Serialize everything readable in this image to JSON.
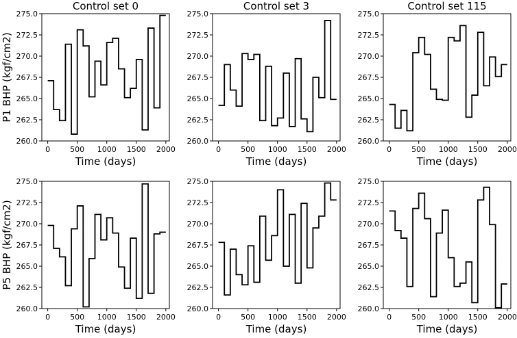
{
  "chart_data": {
    "type": "line",
    "style": "step",
    "layout": "2x3 grid",
    "row_labels": [
      "P1 BHP (kgf/cm2)",
      "P5 BHP (kgf/cm2)"
    ],
    "xlabel": "Time (days)",
    "xlim": [
      -100,
      2060
    ],
    "ylim": [
      260.0,
      275.0
    ],
    "x_ticks": [
      0,
      500,
      1000,
      1500,
      2000
    ],
    "y_tick_labels": [
      "260.0",
      "262.5",
      "265.0",
      "267.5",
      "270.0",
      "272.5",
      "275.0"
    ],
    "line_color": "#000000",
    "step_width_days": 100,
    "panels": [
      {
        "title": "Control set 0",
        "row": 0,
        "col": 0,
        "x_start": 0,
        "values": [
          267.1,
          263.7,
          262.4,
          271.4,
          260.8,
          273.1,
          271.2,
          265.2,
          269.4,
          266.6,
          271.6,
          272.1,
          268.5,
          265.1,
          266.2,
          269.6,
          261.3,
          273.3,
          263.9,
          274.8
        ]
      },
      {
        "title": "Control set 3",
        "row": 0,
        "col": 1,
        "x_start": 0,
        "values": [
          264.2,
          269.0,
          266.0,
          264.1,
          270.3,
          269.6,
          270.2,
          262.4,
          268.8,
          261.8,
          262.7,
          268.0,
          261.7,
          269.7,
          262.6,
          261.1,
          267.5,
          265.1,
          274.2,
          264.9
        ]
      },
      {
        "title": "Control set 115",
        "row": 0,
        "col": 2,
        "x_start": 0,
        "values": [
          264.3,
          261.5,
          263.6,
          261.2,
          270.4,
          272.2,
          270.2,
          266.1,
          264.9,
          264.8,
          272.2,
          271.8,
          273.6,
          262.8,
          265.4,
          272.8,
          266.5,
          269.9,
          267.6,
          269.0
        ]
      },
      {
        "title": "",
        "row": 1,
        "col": 0,
        "x_start": 0,
        "values": [
          269.8,
          267.1,
          266.1,
          262.7,
          269.4,
          272.1,
          260.2,
          265.9,
          271.1,
          268.1,
          270.7,
          268.9,
          264.9,
          262.4,
          268.3,
          261.2,
          274.7,
          261.8,
          268.8,
          269.0
        ]
      },
      {
        "title": "",
        "row": 1,
        "col": 1,
        "x_start": 0,
        "values": [
          267.8,
          261.6,
          267.0,
          264.0,
          262.8,
          267.4,
          263.1,
          270.9,
          265.7,
          268.6,
          274.0,
          265.0,
          271.1,
          263.0,
          272.4,
          264.8,
          269.5,
          270.9,
          274.8,
          272.8
        ]
      },
      {
        "title": "",
        "row": 1,
        "col": 2,
        "x_start": 0,
        "values": [
          271.5,
          269.2,
          268.3,
          262.6,
          271.8,
          273.6,
          270.6,
          261.4,
          268.9,
          271.6,
          266.0,
          262.6,
          263.0,
          265.5,
          260.7,
          272.8,
          274.3,
          269.9,
          260.1,
          262.9
        ]
      }
    ]
  }
}
